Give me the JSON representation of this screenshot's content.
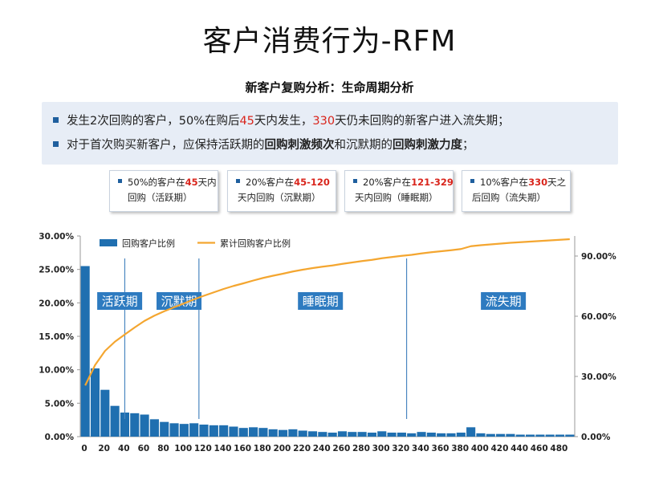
{
  "header": {
    "title": "客户消费行为-RFM",
    "subtitle": "新客户复购分析：生命周期分析"
  },
  "bullets": {
    "b1": {
      "p1": "发生2次回购的客户，50%在购后",
      "d1": "45",
      "p2": "天内发生，",
      "d2": "330",
      "p3": "天仍未回购的新客户进入流失期；"
    },
    "b2": {
      "p1": "对于首次购买新客户，应保持活跃期的",
      "k1": "回购刺激频次",
      "p2": "和沉默期的",
      "k2": "回购刺激力度",
      "p3": "；"
    }
  },
  "phase_boxes": [
    {
      "pct": "50%的客户在",
      "range": "45",
      "unit": "天内",
      "line2": "回购（活跃期）"
    },
    {
      "pct": "20%客户在",
      "range": "45-120",
      "unit": "",
      "line2": "天内回购（沉默期）"
    },
    {
      "pct": "20%客户在",
      "range": "121-329",
      "unit": "",
      "line2": "天内回购（睡眠期）"
    },
    {
      "pct": "10%客户在",
      "range": "330",
      "unit": "天之",
      "line2": "后回购（流失期）"
    }
  ],
  "chart_data": {
    "type": "bar",
    "legend": [
      "回购客户比例",
      "累计回购客户比例"
    ],
    "series": [
      {
        "name": "回购客户比例",
        "type": "bar",
        "axis": "left",
        "x": [
          0,
          10,
          20,
          30,
          40,
          50,
          60,
          70,
          80,
          90,
          100,
          110,
          120,
          130,
          140,
          150,
          160,
          170,
          180,
          190,
          200,
          210,
          220,
          230,
          240,
          250,
          260,
          270,
          280,
          290,
          300,
          310,
          320,
          330,
          340,
          350,
          360,
          370,
          380,
          390,
          400,
          410,
          420,
          430,
          440,
          450,
          460,
          470,
          480,
          490
        ],
        "values": [
          25.5,
          10.2,
          7.0,
          4.6,
          3.6,
          3.5,
          3.3,
          2.6,
          2.2,
          2.0,
          1.9,
          2.0,
          1.8,
          1.7,
          1.7,
          1.5,
          1.3,
          1.4,
          1.3,
          1.1,
          1.0,
          1.1,
          0.9,
          0.8,
          0.7,
          0.6,
          0.8,
          0.7,
          0.7,
          0.6,
          0.8,
          0.6,
          0.6,
          0.5,
          0.7,
          0.6,
          0.5,
          0.5,
          0.6,
          1.4,
          0.5,
          0.4,
          0.4,
          0.4,
          0.3,
          0.3,
          0.3,
          0.3,
          0.3,
          0.3
        ]
      },
      {
        "name": "累计回购客户比例",
        "type": "line",
        "axis": "right",
        "x": [
          0,
          10,
          20,
          30,
          40,
          50,
          60,
          70,
          80,
          90,
          100,
          110,
          120,
          130,
          140,
          150,
          160,
          170,
          180,
          190,
          200,
          210,
          220,
          230,
          240,
          250,
          260,
          270,
          280,
          290,
          300,
          310,
          320,
          330,
          340,
          350,
          360,
          370,
          380,
          390,
          400,
          410,
          420,
          430,
          440,
          450,
          460,
          470,
          480,
          490
        ],
        "values": [
          25.5,
          35.7,
          42.7,
          47.3,
          50.9,
          54.4,
          57.7,
          60.3,
          62.5,
          64.5,
          66.4,
          68.4,
          70.2,
          71.9,
          73.6,
          75.1,
          76.4,
          77.8,
          79.1,
          80.2,
          81.2,
          82.3,
          83.2,
          84.0,
          84.7,
          85.3,
          86.1,
          86.8,
          87.5,
          88.1,
          88.9,
          89.5,
          90.1,
          90.6,
          91.3,
          91.9,
          92.4,
          92.9,
          93.5,
          94.9,
          95.4,
          95.8,
          96.2,
          96.6,
          96.9,
          97.2,
          97.5,
          97.8,
          98.1,
          98.4
        ]
      }
    ],
    "x_ticks": [
      "0",
      "20",
      "40",
      "60",
      "80",
      "100",
      "120",
      "140",
      "160",
      "180",
      "200",
      "220",
      "240",
      "260",
      "280",
      "300",
      "320",
      "340",
      "360",
      "380",
      "400",
      "420",
      "440",
      "460",
      "480"
    ],
    "y_left_ticks": [
      "0.00%",
      "5.00%",
      "10.00%",
      "15.00%",
      "20.00%",
      "25.00%",
      "30.00%"
    ],
    "y_left_range": [
      0,
      30
    ],
    "y_right_ticks": [
      "0.00%",
      "30.00%",
      "60.00%",
      "90.00%"
    ],
    "y_right_range": [
      0,
      100
    ],
    "phase_dividers": [
      45,
      120,
      330
    ],
    "phase_labels": [
      {
        "label": "活跃期",
        "x": 22
      },
      {
        "label": "沉默期",
        "x": 82
      },
      {
        "label": "睡眠期",
        "x": 225
      },
      {
        "label": "流失期",
        "x": 410
      }
    ],
    "colors": {
      "bar": "#1f6fb0",
      "line": "#f4a630",
      "divider": "#4a86c0",
      "label_bg": "#2e7bc0"
    }
  }
}
